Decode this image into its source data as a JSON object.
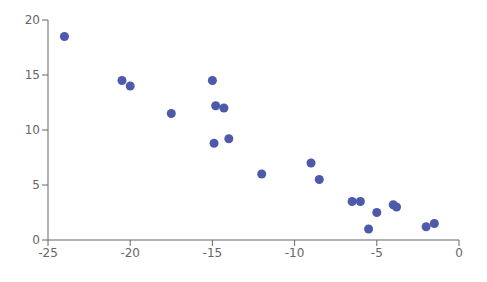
{
  "chart_data": {
    "type": "scatter",
    "x": [
      -24,
      -20.5,
      -20,
      -17.5,
      -15,
      -14.8,
      -14.3,
      -14.9,
      -14.0,
      -12,
      -9,
      -8.5,
      -6.5,
      -6.0,
      -5.0,
      -5.5,
      -4.0,
      -3.8,
      -2.0,
      -1.5
    ],
    "y": [
      18.5,
      14.5,
      14.0,
      11.5,
      14.5,
      12.2,
      12.0,
      8.8,
      9.2,
      6.0,
      7.0,
      5.5,
      3.5,
      3.5,
      2.5,
      1.0,
      3.2,
      3.0,
      1.2,
      1.5
    ],
    "color": "#4d5aab",
    "xlim": [
      -25,
      0
    ],
    "ylim": [
      0,
      20
    ],
    "xticks": [
      -25,
      -20,
      -15,
      -10,
      -5,
      0
    ],
    "yticks": [
      0,
      5,
      10,
      15,
      20
    ],
    "grid": false
  }
}
